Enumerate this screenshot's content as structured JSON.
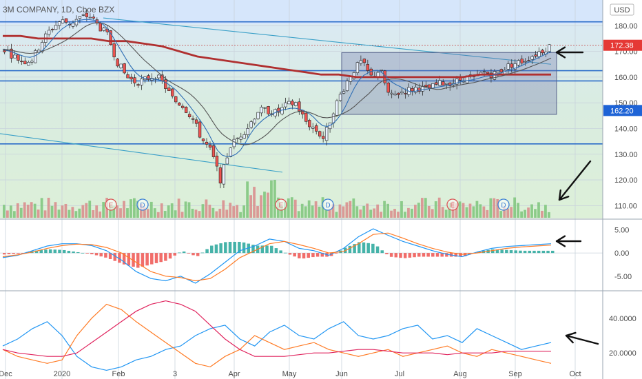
{
  "chart_data": [
    {
      "type": "candlestick",
      "title": "3M COMPANY, 1D, Cboe BZX",
      "currency_label": "USD",
      "ylim": [
        105,
        190
      ],
      "y_ticks": [
        "180.00",
        "170.00",
        "160.00",
        "150.00",
        "140.00",
        "130.00",
        "120.00",
        "110.00"
      ],
      "x_ticks": [
        "Dec",
        "2020",
        "Feb",
        "3",
        "Apr",
        "May",
        "Jun",
        "Jul",
        "Aug",
        "Sep",
        "Oct"
      ],
      "last_price_label": "172.38",
      "level_label": "162.20",
      "horizontal_levels": [
        181.5,
        162.5,
        158.5,
        134
      ],
      "event_markers": [
        "E",
        "D",
        "E",
        "D",
        "E",
        "D"
      ],
      "close_path": [
        171,
        168,
        166,
        167,
        174,
        179,
        182,
        181,
        183,
        184,
        180,
        176,
        166,
        160,
        158,
        159,
        161,
        157,
        151,
        149,
        144,
        136,
        131,
        120,
        133,
        137,
        141,
        147,
        147,
        146,
        149,
        150,
        143,
        140,
        136,
        147,
        155,
        162,
        166,
        160,
        163,
        152,
        154,
        155,
        156,
        155,
        157,
        158,
        158,
        160,
        159,
        162,
        161,
        163,
        165,
        166,
        168,
        170,
        172
      ],
      "ma_200_path": [
        176,
        176,
        175,
        175,
        175,
        175,
        174,
        174,
        173,
        172,
        170,
        168,
        167,
        166,
        165,
        164,
        163,
        162,
        161,
        161,
        160,
        160,
        160,
        160,
        160,
        160,
        160,
        161,
        161,
        161,
        161,
        161
      ],
      "box_range": [
        145.5,
        169.5
      ],
      "colors": {
        "up": "#26a69a",
        "down": "#ef5350",
        "ma200": "#b03030",
        "ma_fast": "#2f6fb5",
        "ma_slow": "#555555"
      }
    },
    {
      "type": "line",
      "name": "MACD",
      "ylim": [
        -8,
        7
      ],
      "y_ticks": [
        "5.00",
        "0.00",
        "-5.00"
      ],
      "series": [
        {
          "name": "",
          "color": "#2196f3",
          "values": [
            -1,
            -0.5,
            0.5,
            1.5,
            2,
            2,
            1.6,
            0.5,
            -1.5,
            -4,
            -5.5,
            -6,
            -5,
            -6.5,
            -4.5,
            -2,
            0.5,
            1.5,
            3,
            2.5,
            1,
            0.5,
            -0.5,
            1,
            3.5,
            5.2,
            3.8,
            2.5,
            1.5,
            0.5,
            -0.3,
            -0.8,
            0.2,
            1,
            1.4,
            1.6,
            1.8,
            2
          ]
        },
        {
          "name": "",
          "color": "#ff7b25",
          "values": [
            -0.8,
            -0.4,
            0.2,
            1,
            1.6,
            1.9,
            1.8,
            1.2,
            0,
            -2,
            -4,
            -5,
            -5.3,
            -6,
            -5.5,
            -3.5,
            -1,
            0.5,
            2,
            2.5,
            1.8,
            1,
            0,
            0.3,
            2,
            4,
            4.3,
            3.2,
            2,
            1,
            0.2,
            -0.3,
            0,
            0.5,
            1,
            1.3,
            1.5,
            1.7
          ]
        }
      ]
    },
    {
      "type": "line",
      "name": "DMI",
      "ylim": [
        5,
        55
      ],
      "y_ticks": [
        "40.0000",
        "20.0000"
      ],
      "series": [
        {
          "name": "",
          "color": "#2196f3",
          "values": [
            24,
            28,
            34,
            38,
            30,
            18,
            12,
            10,
            12,
            16,
            18,
            22,
            24,
            30,
            34,
            36,
            28,
            24,
            32,
            36,
            30,
            28,
            34,
            38,
            30,
            28,
            30,
            34,
            36,
            28,
            30,
            26,
            34,
            30,
            26,
            22,
            24,
            26
          ]
        },
        {
          "name": "",
          "color": "#ff7b25",
          "values": [
            22,
            18,
            16,
            14,
            16,
            30,
            40,
            48,
            45,
            38,
            32,
            26,
            20,
            14,
            12,
            18,
            22,
            30,
            26,
            22,
            24,
            26,
            22,
            20,
            18,
            20,
            22,
            18,
            20,
            22,
            24,
            20,
            18,
            22,
            20,
            18,
            16,
            14
          ]
        },
        {
          "name": "",
          "color": "#e0245e",
          "values": [
            22,
            20,
            19,
            18,
            18,
            20,
            26,
            32,
            38,
            44,
            48,
            50,
            48,
            44,
            36,
            28,
            22,
            18,
            18,
            18,
            19,
            20,
            20,
            21,
            22,
            22,
            21,
            20,
            20,
            20,
            19,
            20,
            20,
            20,
            21,
            21,
            21,
            21
          ]
        }
      ]
    }
  ]
}
